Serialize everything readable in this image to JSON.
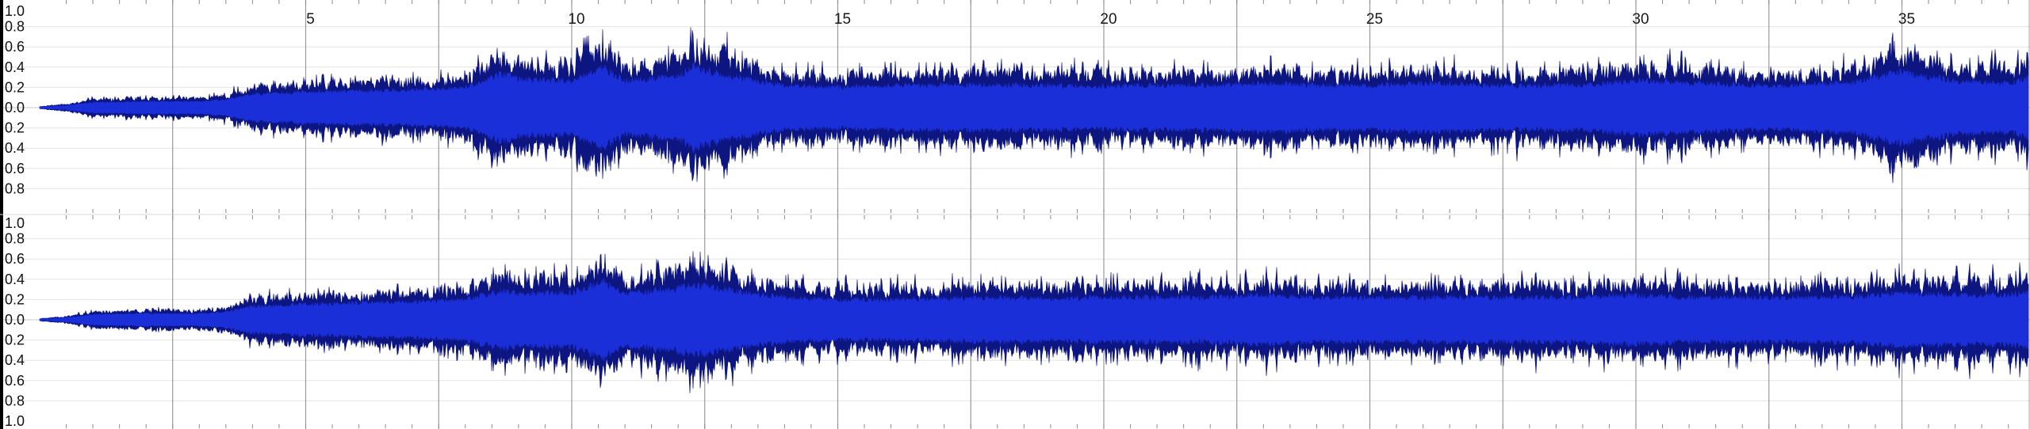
{
  "app": {
    "view": "stereo-waveform-editor",
    "colors": {
      "background": "#ffffff",
      "wave_peak": "#0d1580",
      "wave_rms": "#1a2fd8",
      "grid_line": "#9a9a9a",
      "axis_text": "#111111",
      "left_bar": "#000000"
    }
  },
  "ruler": {
    "time_labels": [
      "5",
      "10",
      "15",
      "20",
      "25",
      "30",
      "35"
    ],
    "time_values": [
      5,
      10,
      15,
      20,
      25,
      30,
      35
    ],
    "minor_tick_values": [
      2.5,
      7.5,
      12.5,
      17.5,
      22.5,
      27.5,
      32.5
    ]
  },
  "tracks": [
    {
      "id": "channel-1",
      "top_label": "1.0",
      "amplitude_labels": [
        "0.8",
        "0.6",
        "0.4",
        "0.2",
        "0.0",
        "0.2",
        "0.4",
        "0.6",
        "0.8"
      ],
      "seed": 17
    },
    {
      "id": "channel-2",
      "top_label": "1.0",
      "amplitude_labels": [
        "0.8",
        "0.6",
        "0.4",
        "0.2",
        "0.0",
        "0.2",
        "0.4",
        "0.6",
        "0.8"
      ],
      "bottom_label": "1.0",
      "seed": 91
    }
  ],
  "chart_data": {
    "type": "area",
    "title": "",
    "xlabel": "",
    "ylabel": "",
    "x_unit": "seconds",
    "xlim": [
      0,
      37.7
    ],
    "ylim": [
      -1.0,
      1.0
    ],
    "x_ticks": [
      5,
      10,
      15,
      20,
      25,
      30,
      35
    ],
    "y_ticks": [
      -0.8,
      -0.6,
      -0.4,
      -0.2,
      0.0,
      0.2,
      0.4,
      0.6,
      0.8
    ],
    "grid": true,
    "series": [
      {
        "envelope_x": [
          0,
          0.5,
          1,
          2,
          3,
          3.5,
          4,
          5,
          6,
          7,
          8,
          8.7,
          9,
          10,
          10.6,
          11,
          12,
          12.3,
          13,
          14,
          15,
          16,
          17,
          18,
          19,
          20,
          21,
          22,
          23,
          24,
          25,
          26,
          27,
          28,
          29,
          30,
          31,
          32,
          33,
          34,
          35,
          36,
          37,
          37.7
        ],
        "envelope_peak": [
          0.02,
          0.05,
          0.12,
          0.14,
          0.14,
          0.18,
          0.3,
          0.35,
          0.38,
          0.4,
          0.45,
          0.75,
          0.65,
          0.6,
          0.9,
          0.6,
          0.7,
          0.9,
          0.7,
          0.5,
          0.45,
          0.5,
          0.5,
          0.52,
          0.5,
          0.48,
          0.5,
          0.5,
          0.55,
          0.5,
          0.5,
          0.55,
          0.5,
          0.5,
          0.5,
          0.6,
          0.55,
          0.5,
          0.5,
          0.55,
          0.8,
          0.6,
          0.55,
          0.75
        ]
      },
      {
        "envelope_x": [
          0,
          0.5,
          1,
          2,
          3,
          3.5,
          4,
          5,
          6,
          7,
          8,
          8.7,
          9,
          10,
          10.6,
          11,
          12,
          12.3,
          13,
          14,
          15,
          16,
          17,
          18,
          19,
          20,
          21,
          22,
          23,
          24,
          25,
          26,
          27,
          28,
          29,
          30,
          31,
          32,
          33,
          34,
          35,
          36,
          37,
          37.7
        ],
        "envelope_peak": [
          0.02,
          0.05,
          0.12,
          0.14,
          0.14,
          0.18,
          0.3,
          0.35,
          0.38,
          0.4,
          0.45,
          0.65,
          0.6,
          0.6,
          0.85,
          0.6,
          0.7,
          0.8,
          0.65,
          0.5,
          0.45,
          0.45,
          0.48,
          0.5,
          0.48,
          0.5,
          0.5,
          0.5,
          0.55,
          0.5,
          0.5,
          0.5,
          0.5,
          0.5,
          0.5,
          0.55,
          0.5,
          0.5,
          0.5,
          0.5,
          0.6,
          0.55,
          0.55,
          0.7
        ]
      }
    ]
  }
}
